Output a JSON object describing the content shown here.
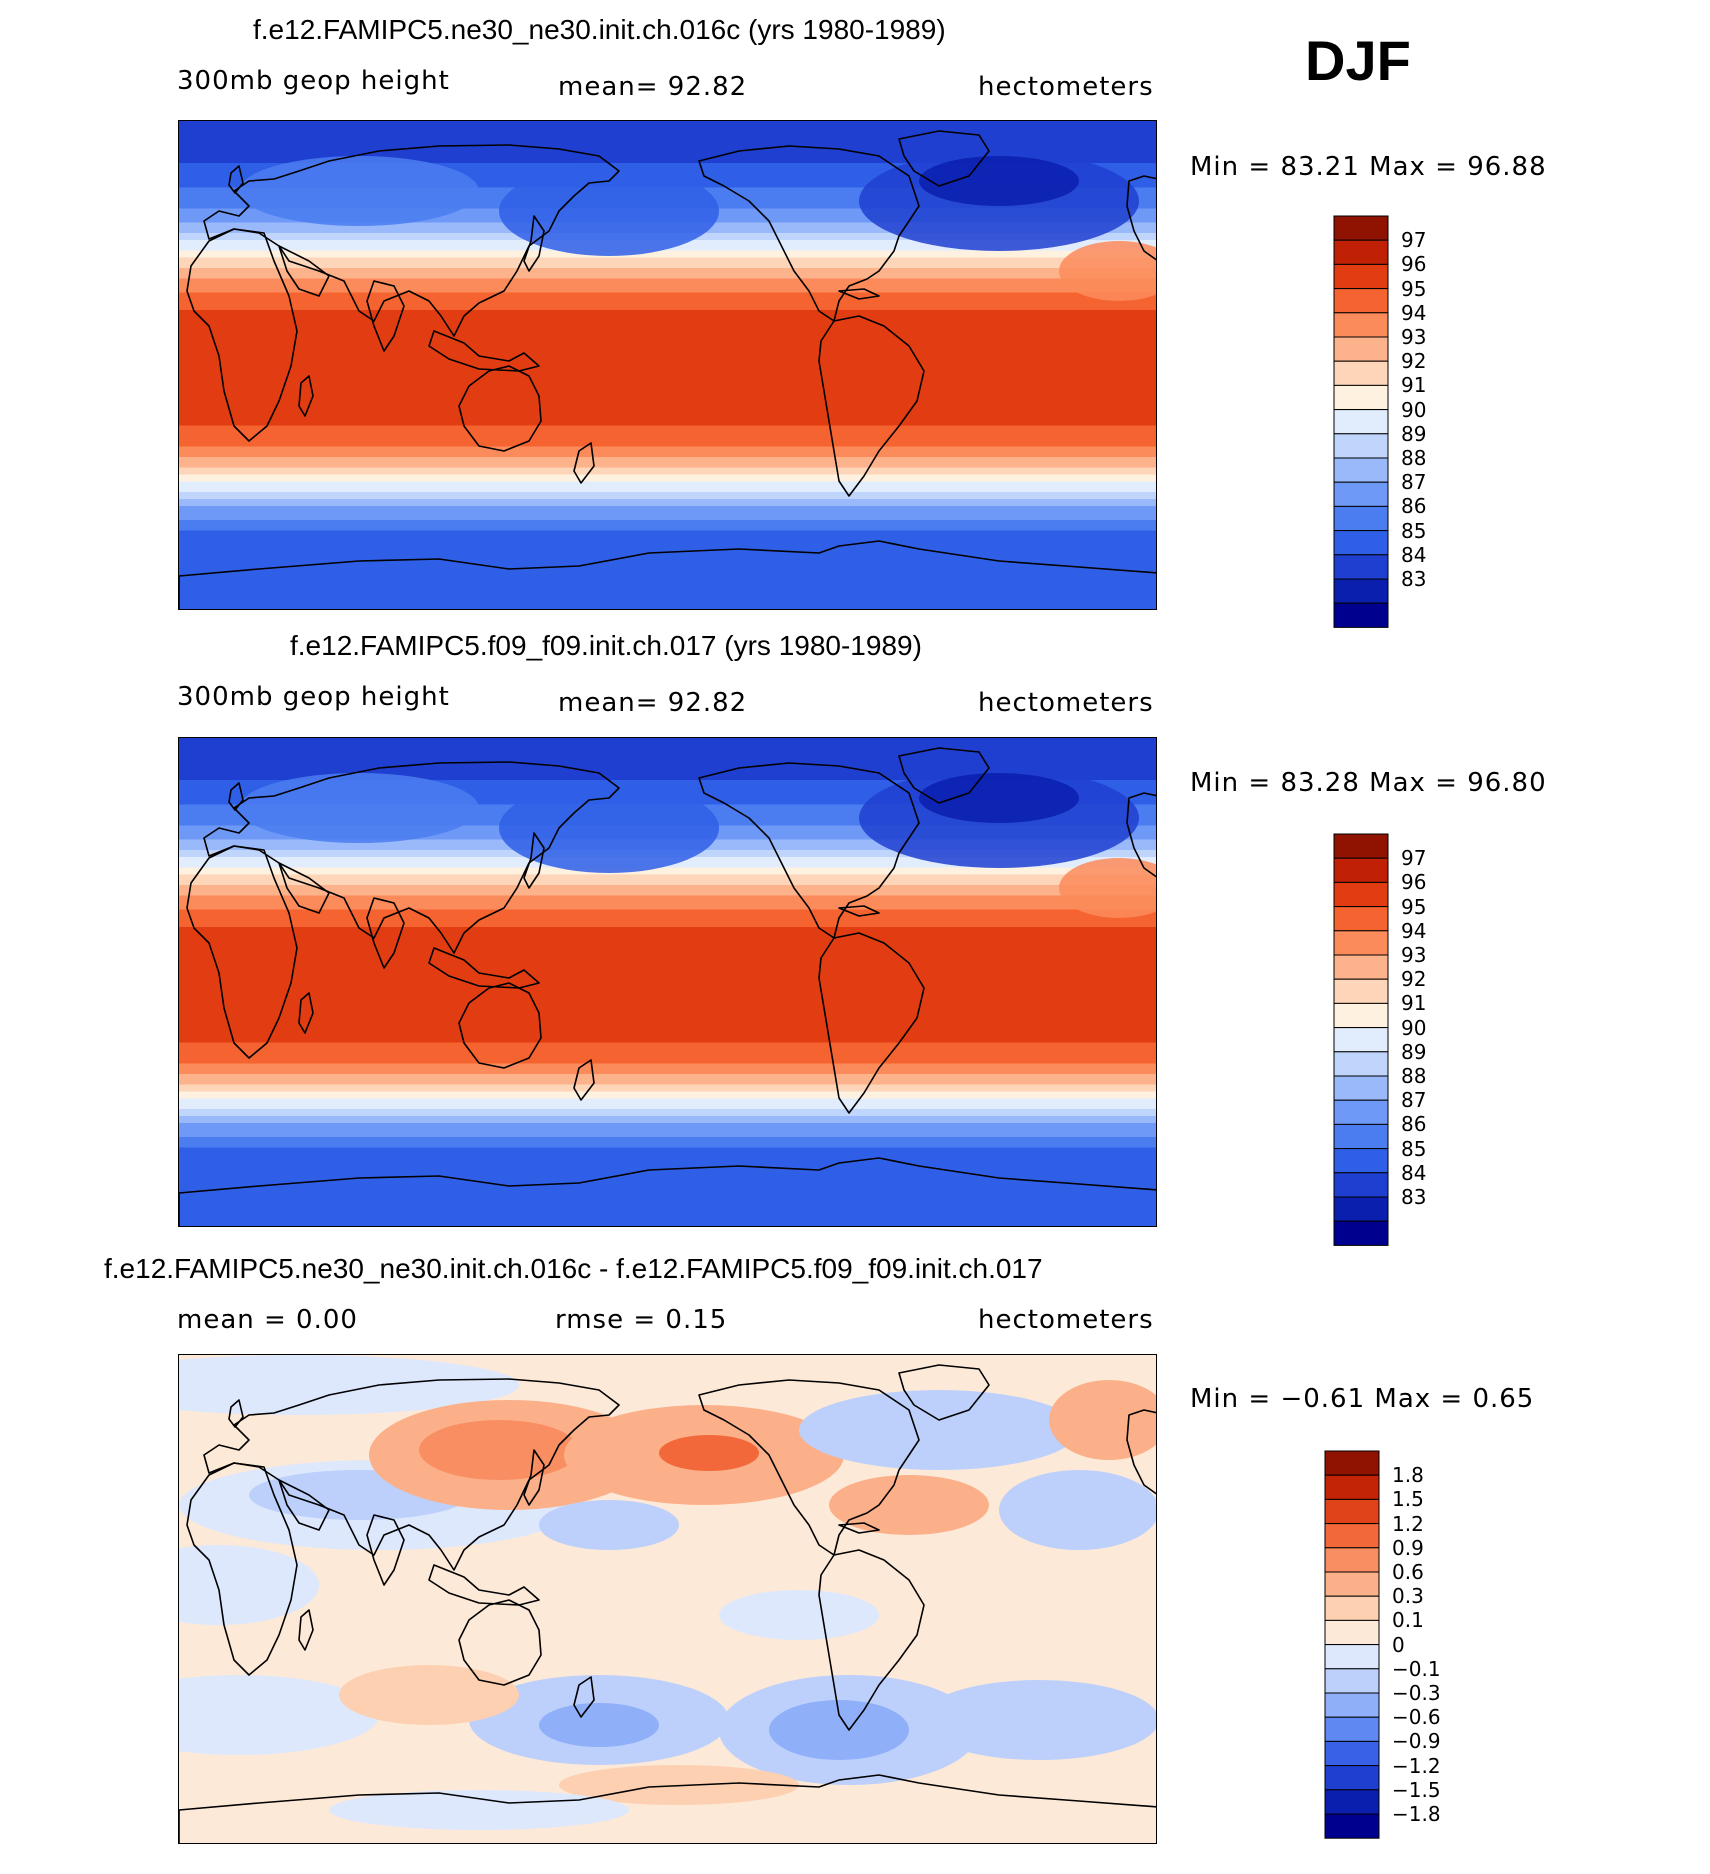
{
  "season": "DJF",
  "colors": {
    "main": [
      "#00008f",
      "#0a1fae",
      "#1e3fd0",
      "#2f5fe6",
      "#4b7df0",
      "#6e99f6",
      "#99b9fa",
      "#c0d5fc",
      "#e1ecfd",
      "#fff1e0",
      "#fdd5b8",
      "#fcb28a",
      "#fb8b5a",
      "#f56330",
      "#e23c12",
      "#c02105",
      "#901200"
    ],
    "diff": [
      "#00008f",
      "#0a1fae",
      "#1e3fd0",
      "#3861e8",
      "#5f88f2",
      "#8fb0f8",
      "#bcd0fb",
      "#dde8fd",
      "#fde9d8",
      "#fdd0b2",
      "#fbb08a",
      "#f98e62",
      "#f2683a",
      "#e0421a",
      "#c32406",
      "#901200"
    ]
  },
  "panels": [
    {
      "title": "f.e12.FAMIPC5.ne30_ne30.init.ch.016c (yrs 1980-1989)",
      "left_label": "300mb geop height",
      "mid_label": "mean=   92.82",
      "right_label": "hectometers",
      "minmax": "Min =   83.21  Max =   96.88",
      "colorbar": [
        "97",
        "96",
        "95",
        "94",
        "93",
        "92",
        "91",
        "90",
        "89",
        "88",
        "87",
        "86",
        "85",
        "84",
        "83"
      ]
    },
    {
      "title": "f.e12.FAMIPC5.f09_f09.init.ch.017 (yrs 1980-1989)",
      "left_label": "300mb geop height",
      "mid_label": "mean=   92.82",
      "right_label": "hectometers",
      "minmax": "Min =   83.28  Max =   96.80",
      "colorbar": [
        "97",
        "96",
        "95",
        "94",
        "93",
        "92",
        "91",
        "90",
        "89",
        "88",
        "87",
        "86",
        "85",
        "84",
        "83"
      ]
    },
    {
      "title": "f.e12.FAMIPC5.ne30_ne30.init.ch.016c - f.e12.FAMIPC5.f09_f09.init.ch.017",
      "left_label": "mean =     0.00",
      "mid_label": "rmse =     0.15",
      "right_label": "hectometers",
      "minmax": "Min =   −0.61  Max =    0.65",
      "colorbar": [
        "1.8",
        "1.5",
        "1.2",
        "0.9",
        "0.6",
        "0.3",
        "0.1",
        "0",
        "−0.1",
        "−0.3",
        "−0.6",
        "−0.9",
        "−1.2",
        "−1.5",
        "−1.8"
      ]
    }
  ],
  "chart_data": [
    {
      "type": "heatmap",
      "title": "f.e12.FAMIPC5.ne30_ne30.init.ch.016c (yrs 1980-1989)",
      "variable": "300mb geop height",
      "units": "hectometers",
      "mean": 92.82,
      "min": 83.21,
      "max": 96.88,
      "levels": [
        83,
        84,
        85,
        86,
        87,
        88,
        89,
        90,
        91,
        92,
        93,
        94,
        95,
        96,
        97
      ],
      "zonal_profile": {
        "lat": [
          90,
          75,
          60,
          50,
          40,
          30,
          20,
          0,
          -20,
          -30,
          -40,
          -50,
          -60,
          -75,
          -90
        ],
        "value": [
          84,
          85,
          86.5,
          88.5,
          92,
          94.5,
          96.2,
          96.5,
          96.3,
          95,
          92,
          88.5,
          86,
          85,
          85.5
        ]
      }
    },
    {
      "type": "heatmap",
      "title": "f.e12.FAMIPC5.f09_f09.init.ch.017 (yrs 1980-1989)",
      "variable": "300mb geop height",
      "units": "hectometers",
      "mean": 92.82,
      "min": 83.28,
      "max": 96.8,
      "levels": [
        83,
        84,
        85,
        86,
        87,
        88,
        89,
        90,
        91,
        92,
        93,
        94,
        95,
        96,
        97
      ],
      "zonal_profile": {
        "lat": [
          90,
          75,
          60,
          50,
          40,
          30,
          20,
          0,
          -20,
          -30,
          -40,
          -50,
          -60,
          -75,
          -90
        ],
        "value": [
          84,
          85,
          86.5,
          88.5,
          92,
          94.5,
          96.2,
          96.5,
          96.3,
          95,
          92,
          88.5,
          86,
          85,
          85.5
        ]
      }
    },
    {
      "type": "heatmap",
      "title": "f.e12.FAMIPC5.ne30_ne30.init.ch.016c - f.e12.FAMIPC5.f09_f09.init.ch.017",
      "units": "hectometers",
      "mean": 0.0,
      "rmse": 0.15,
      "min": -0.61,
      "max": 0.65,
      "levels": [
        -1.8,
        -1.5,
        -1.2,
        -0.9,
        -0.6,
        -0.3,
        -0.1,
        0,
        0.1,
        0.3,
        0.6,
        0.9,
        1.2,
        1.5,
        1.8
      ]
    }
  ]
}
